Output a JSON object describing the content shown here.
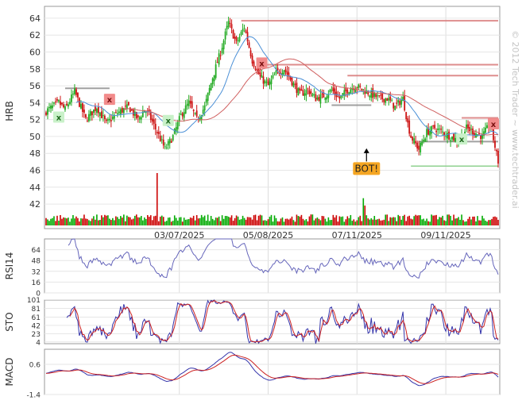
{
  "watermark": "© 2012 Tech Trader ~ www.techtrader.ai",
  "chart_data": [
    {
      "type": "candlestick",
      "panel": "price",
      "ylabel": "HRB",
      "ylim": [
        40.6,
        65.4
      ],
      "yticks": [
        42,
        44,
        46,
        48,
        50,
        52,
        54,
        56,
        58,
        60,
        62,
        64
      ],
      "x_tick_labels": [
        "03/07/2025",
        "05/08/2025",
        "07/11/2025",
        "09/11/2025"
      ],
      "x_tick_days": [
        84,
        140,
        196,
        252
      ],
      "day_range": [
        0,
        285
      ],
      "path_knots": {
        "days": [
          0,
          8,
          12,
          18,
          25,
          32,
          38,
          45,
          52,
          58,
          62,
          65,
          70,
          75,
          80,
          85,
          90,
          95,
          100,
          105,
          110,
          115,
          120,
          125,
          130,
          135,
          140,
          145,
          150,
          155,
          160,
          165,
          170,
          175,
          180,
          185,
          190,
          195,
          200,
          205,
          210,
          215,
          220,
          225,
          228,
          230,
          235,
          240,
          245,
          250,
          255,
          260,
          265,
          270,
          275,
          280,
          285
        ],
        "closes": [
          53.0,
          54.0,
          53.2,
          55.3,
          52.0,
          53.5,
          51.5,
          52.8,
          53.5,
          52.0,
          53.2,
          52.5,
          50.5,
          48.5,
          50.0,
          52.5,
          54.0,
          52.0,
          53.5,
          57.0,
          60.0,
          63.5,
          61.0,
          63.0,
          59.0,
          57.0,
          56.0,
          57.5,
          58.0,
          56.5,
          55.0,
          55.5,
          54.5,
          54.8,
          55.5,
          54.5,
          55.5,
          56.0,
          55.5,
          55.0,
          54.5,
          54.5,
          53.5,
          54.5,
          51.5,
          50.0,
          48.5,
          50.5,
          51.0,
          50.5,
          50.0,
          49.5,
          51.0,
          50.5,
          50.0,
          51.5,
          47.0
        ]
      },
      "moving_averages": [
        {
          "color": "#4a8fd6",
          "period": 20
        },
        {
          "color": "#d06060",
          "period": 50
        }
      ],
      "resistance_lines": [
        {
          "price": 63.7,
          "from_day": 123,
          "to_day": 285
        },
        {
          "price": 58.5,
          "from_day": 137,
          "to_day": 285
        },
        {
          "price": 57.2,
          "from_day": 190,
          "to_day": 285
        },
        {
          "price": 52.2,
          "from_day": 262,
          "to_day": 285
        }
      ],
      "support_lines": [
        {
          "price": 55.7,
          "from_day": 12,
          "to_day": 40
        },
        {
          "price": 53.7,
          "from_day": 180,
          "to_day": 205
        },
        {
          "price": 49.4,
          "from_day": 235,
          "to_day": 285
        }
      ],
      "entry_line": {
        "price": 46.5,
        "from_day": 230,
        "to_day": 285
      },
      "sell_signals": [
        {
          "day": 40,
          "price": 54.4,
          "label": "x"
        },
        {
          "day": 136,
          "price": 58.7,
          "label": "x"
        },
        {
          "day": 282,
          "price": 51.5,
          "label": "x"
        }
      ],
      "buy_signals": [
        {
          "day": 8,
          "price": 52.3,
          "label": "x"
        },
        {
          "day": 77,
          "price": 51.9,
          "label": "x"
        },
        {
          "day": 262,
          "price": 49.7,
          "label": "x"
        }
      ],
      "callouts": [
        {
          "day": 202,
          "price": 46.2,
          "text": "BOT!",
          "arrow_to_price": 48.6
        }
      ]
    },
    {
      "type": "bar",
      "panel": "volume",
      "colors": {
        "up": "#00aa00",
        "down": "#cc0000"
      },
      "spikes": [
        {
          "day": 70,
          "ratio": 1.0
        },
        {
          "day": 200,
          "ratio": 0.52
        },
        {
          "day": 201,
          "ratio": 0.38
        }
      ]
    },
    {
      "type": "line",
      "panel": "oscillator",
      "ylabel": "RSI14",
      "ylim": [
        0,
        80
      ],
      "yticks": [
        0,
        16,
        32,
        48,
        64
      ],
      "series": [
        {
          "color": "#6666bb"
        }
      ]
    },
    {
      "type": "line",
      "panel": "oscillator",
      "ylabel": "STO",
      "ylim": [
        0,
        100
      ],
      "yticks": [
        4,
        23,
        42,
        61,
        81,
        101
      ],
      "series": [
        {
          "color": "#3333aa"
        },
        {
          "color": "#cc2222"
        }
      ]
    },
    {
      "type": "line",
      "panel": "oscillator",
      "ylabel": "MACD",
      "ylim": [
        -1.4,
        1.6
      ],
      "yticks": [
        -1.4,
        0.6
      ],
      "series": [
        {
          "color": "#3333aa"
        },
        {
          "color": "#cc2222"
        }
      ]
    }
  ]
}
